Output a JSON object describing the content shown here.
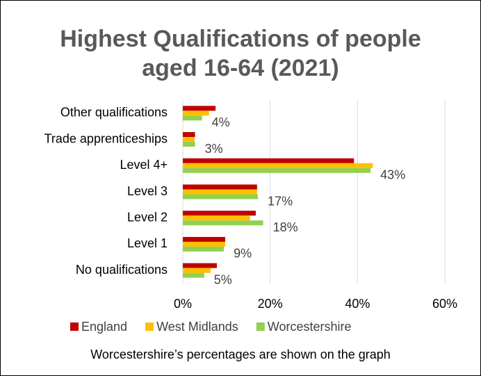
{
  "chart_data": {
    "type": "bar",
    "orientation": "horizontal",
    "title": "Highest Qualifications of people aged 16-64 (2021)",
    "footnote": "Worcestershire’s percentages are shown on the graph",
    "categories": [
      "Other qualifications",
      "Trade apprenticeships",
      "Level 4+",
      "Level 3",
      "Level 2",
      "Level 1",
      "No qualifications"
    ],
    "series": [
      {
        "name": "England",
        "color": "#c00000",
        "values": [
          7.5,
          2.8,
          39.2,
          17,
          16.7,
          9.7,
          7.8
        ]
      },
      {
        "name": "West Midlands",
        "color": "#ffc000",
        "values": [
          6,
          2.7,
          43.5,
          17,
          15.4,
          9.7,
          6.4
        ]
      },
      {
        "name": "Worcestershire",
        "color": "#92d050",
        "values": [
          4.4,
          2.8,
          43,
          17.2,
          18.4,
          9.4,
          4.9
        ],
        "value_labels": [
          "4%",
          "3%",
          "43%",
          "17%",
          "18%",
          "9%",
          "5%"
        ]
      }
    ],
    "xlim": [
      0,
      60
    ],
    "xticks": [
      {
        "value": 0,
        "label": "0%"
      },
      {
        "value": 20,
        "label": "20%"
      },
      {
        "value": 40,
        "label": "40%"
      },
      {
        "value": 60,
        "label": "60%"
      }
    ],
    "grid": true,
    "legend": "bottom"
  }
}
